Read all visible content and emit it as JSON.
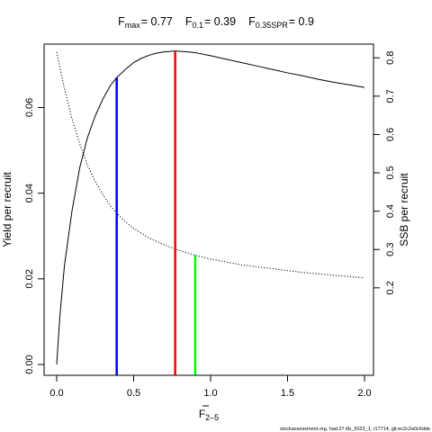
{
  "title": {
    "fmax_main": "F",
    "fmax_sub": "max",
    "fmax_value": "= 0.77",
    "f01_main": "F",
    "f01_sub": "0.1",
    "f01_value": "= 0.39",
    "fspr_main": "F",
    "fspr_sub": "0.35SPR",
    "fspr_value": "= 0.9"
  },
  "credit": "stockassessment.org, had.27.6b_2023_1, r17714, git:ec2c2a0c6dde",
  "colors": {
    "ypr": "#000000",
    "ssb": "#000000",
    "fmax": "#ff0000",
    "f01": "#0000ff",
    "fspr": "#00ff00"
  },
  "chart_data": {
    "type": "line",
    "xlabel_main": "F",
    "xlabel_sub": "2–5",
    "ylabel_left": "Yield per recruit",
    "ylabel_right": "SSB per recruit",
    "xlim": [
      0,
      2
    ],
    "ylim_left": [
      0,
      0.0725
    ],
    "ylim_right": [
      0,
      0.81
    ],
    "x_ticks": [
      {
        "v": 0,
        "label": "0.0"
      },
      {
        "v": 0.5,
        "label": "0.5"
      },
      {
        "v": 1,
        "label": "1.0"
      },
      {
        "v": 1.5,
        "label": "1.5"
      },
      {
        "v": 2,
        "label": "2.0"
      }
    ],
    "y_left_ticks": [
      {
        "v": 0,
        "label": "0.00"
      },
      {
        "v": 0.02,
        "label": "0.02"
      },
      {
        "v": 0.04,
        "label": "0.04"
      },
      {
        "v": 0.06,
        "label": "0.06"
      }
    ],
    "y_right_ticks": [
      {
        "v": 0.2,
        "label": "0.2"
      },
      {
        "v": 0.3,
        "label": "0.3"
      },
      {
        "v": 0.4,
        "label": "0.4"
      },
      {
        "v": 0.5,
        "label": "0.5"
      },
      {
        "v": 0.6,
        "label": "0.6"
      },
      {
        "v": 0.7,
        "label": "0.7"
      },
      {
        "v": 0.8,
        "label": "0.8"
      }
    ],
    "series": [
      {
        "style": "solid",
        "axis": "left",
        "x": [
          0,
          0.02,
          0.05,
          0.1,
          0.15,
          0.2,
          0.25,
          0.3,
          0.35,
          0.39,
          0.45,
          0.5,
          0.55,
          0.6,
          0.65,
          0.7,
          0.77,
          0.85,
          0.9,
          1.0,
          1.1,
          1.2,
          1.3,
          1.4,
          1.5,
          1.6,
          1.7,
          1.8,
          1.9,
          2.0
        ],
        "y": [
          0,
          0.011,
          0.023,
          0.036,
          0.046,
          0.053,
          0.058,
          0.062,
          0.0652,
          0.067,
          0.069,
          0.0705,
          0.0715,
          0.0722,
          0.0727,
          0.073,
          0.0732,
          0.073,
          0.0728,
          0.0721,
          0.0713,
          0.0705,
          0.0697,
          0.0689,
          0.0681,
          0.0674,
          0.0666,
          0.0659,
          0.0653,
          0.0647
        ]
      },
      {
        "style": "dotted",
        "axis": "right",
        "x": [
          0,
          0.05,
          0.1,
          0.15,
          0.2,
          0.25,
          0.3,
          0.35,
          0.39,
          0.45,
          0.5,
          0.6,
          0.7,
          0.77,
          0.9,
          1.0,
          1.2,
          1.4,
          1.6,
          1.8,
          2.0
        ],
        "y": [
          0.815,
          0.72,
          0.64,
          0.575,
          0.52,
          0.478,
          0.443,
          0.413,
          0.395,
          0.371,
          0.355,
          0.33,
          0.312,
          0.301,
          0.285,
          0.275,
          0.26,
          0.25,
          0.24,
          0.233,
          0.226
        ]
      }
    ],
    "reference_lines": [
      {
        "x": 0.39,
        "top_left_value": 0.067,
        "color_key": "f01"
      },
      {
        "x": 0.77,
        "top_left_value": 0.0732,
        "color_key": "fmax"
      },
      {
        "x": 0.9,
        "top_left_value": 0.0255,
        "color_key": "fspr"
      }
    ]
  }
}
